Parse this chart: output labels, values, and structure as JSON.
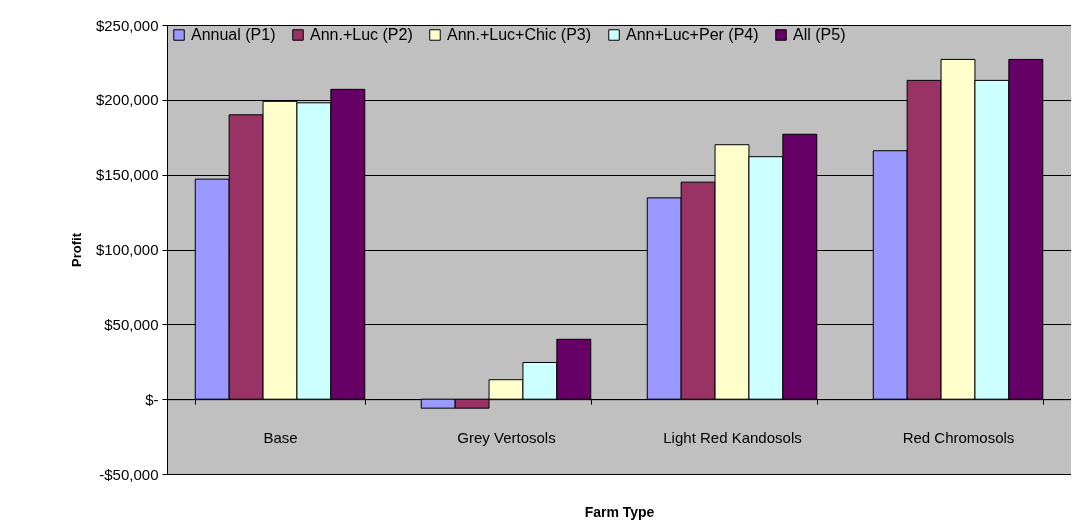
{
  "chart_data": {
    "type": "bar",
    "xlabel": "Farm Type",
    "ylabel": "Profit",
    "categories": [
      "Base",
      "Grey Vertosols",
      "Light Red Kandosols",
      "Red Chromosols"
    ],
    "series": [
      {
        "name": "Annual (P1)",
        "color": "#9999ff",
        "values": [
          147000,
          -6000,
          134500,
          166000
        ]
      },
      {
        "name": "Ann.+Luc (P2)",
        "color": "#993366",
        "values": [
          190000,
          -6000,
          145000,
          213000
        ]
      },
      {
        "name": "Ann.+Luc+Chic (P3)",
        "color": "#ffffcc",
        "values": [
          199000,
          13000,
          170000,
          227000
        ]
      },
      {
        "name": "Ann+Luc+Per (P4)",
        "color": "#ccffff",
        "values": [
          198000,
          24500,
          162000,
          213000
        ]
      },
      {
        "name": "All (P5)",
        "color": "#660066",
        "values": [
          207000,
          40000,
          177000,
          227000
        ]
      }
    ],
    "ylim": [
      -50000,
      250000
    ],
    "yticks": [
      {
        "value": -50000,
        "label": "-$50,000"
      },
      {
        "value": 0,
        "label": "$-"
      },
      {
        "value": 50000,
        "label": "$50,000"
      },
      {
        "value": 100000,
        "label": "$100,000"
      },
      {
        "value": 150000,
        "label": "$150,000"
      },
      {
        "value": 200000,
        "label": "$200,000"
      },
      {
        "value": 250000,
        "label": "$250,000"
      }
    ],
    "grid": "y",
    "legend": "top"
  }
}
